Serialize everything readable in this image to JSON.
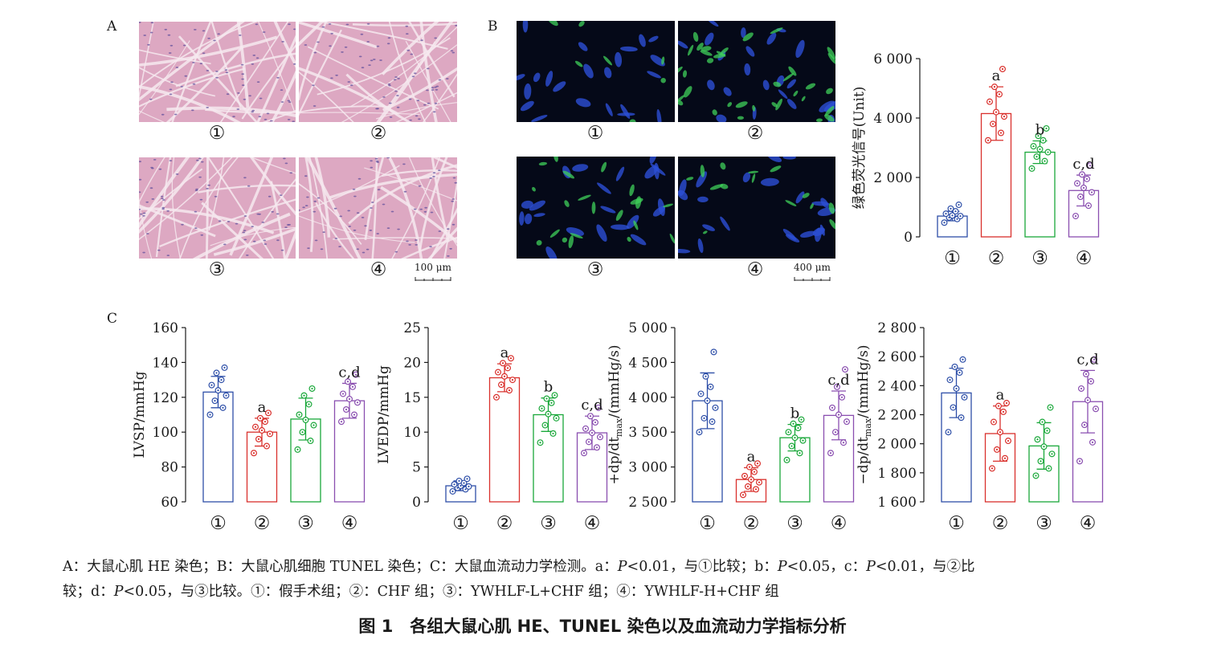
{
  "panel_labels": {
    "A": "A",
    "B": "B",
    "C": "C"
  },
  "group_marks": [
    "①",
    "②",
    "③",
    "④"
  ],
  "scale_bars": {
    "he": "100 μm",
    "tunel": "400 μm"
  },
  "colors": {
    "g1": "#2e4fa8",
    "g2": "#d9302c",
    "g3": "#1aa83a",
    "g4": "#8a4fb0"
  },
  "chart_data": [
    {
      "id": "tunel",
      "type": "bar",
      "ylabel": "绿色荧光信号(Unit)",
      "ylim": [
        0,
        6000
      ],
      "yticks": [
        0,
        2000,
        4000,
        6000
      ],
      "ytick_labels": [
        "0",
        "2 000",
        "4 000",
        "6 000"
      ],
      "categories": [
        "①",
        "②",
        "③",
        "④"
      ],
      "values": [
        700,
        4150,
        2850,
        1560
      ],
      "errors": [
        160,
        900,
        380,
        520
      ],
      "letters": [
        "",
        "a",
        "b",
        "c,d"
      ],
      "points": [
        [
          480,
          600,
          650,
          700,
          720,
          780,
          860,
          950,
          1080
        ],
        [
          3250,
          3500,
          3800,
          4050,
          4200,
          4550,
          4800,
          5050,
          5650
        ],
        [
          2300,
          2550,
          2700,
          2850,
          2950,
          3050,
          3250,
          3400,
          3650
        ],
        [
          700,
          1050,
          1350,
          1500,
          1650,
          1800,
          1950,
          2100,
          2400
        ]
      ]
    },
    {
      "id": "lvsp",
      "type": "bar",
      "ylabel": "LVSP/mmHg",
      "ylim": [
        60,
        160
      ],
      "yticks": [
        60,
        80,
        100,
        120,
        140,
        160
      ],
      "ytick_labels": [
        "60",
        "80",
        "100",
        "120",
        "140",
        "160"
      ],
      "categories": [
        "①",
        "②",
        "③",
        "④"
      ],
      "values": [
        123,
        100,
        107.5,
        118
      ],
      "errors": [
        9,
        8,
        12,
        10
      ],
      "letters": [
        "",
        "a",
        "",
        "c,d"
      ],
      "points": [
        [
          110,
          114,
          118,
          121,
          124,
          127,
          130,
          134,
          137
        ],
        [
          88,
          92,
          96,
          99,
          101,
          103,
          106,
          108,
          111
        ],
        [
          90,
          95,
          100,
          104,
          107,
          110,
          116,
          121,
          125
        ],
        [
          106,
          110,
          113,
          117,
          119,
          122,
          126,
          129,
          133
        ]
      ]
    },
    {
      "id": "lvedp",
      "type": "bar",
      "ylabel": "LVEDP/mmHg",
      "ylim": [
        0,
        25
      ],
      "yticks": [
        0,
        5,
        10,
        15,
        20,
        25
      ],
      "ytick_labels": [
        "0",
        "5",
        "10",
        "15",
        "20",
        "25"
      ],
      "categories": [
        "①",
        "②",
        "③",
        "④"
      ],
      "values": [
        2.3,
        17.8,
        12.5,
        9.9
      ],
      "errors": [
        0.7,
        2.0,
        2.4,
        2.4
      ],
      "letters": [
        "",
        "a",
        "b",
        "c,d"
      ],
      "points": [
        [
          1.5,
          1.8,
          2.0,
          2.2,
          2.3,
          2.5,
          2.7,
          3.0,
          3.3
        ],
        [
          15.0,
          16.0,
          16.8,
          17.5,
          18.0,
          18.6,
          19.2,
          19.9,
          20.6
        ],
        [
          8.5,
          9.8,
          11.0,
          12.0,
          12.6,
          13.4,
          14.2,
          14.8,
          15.3
        ],
        [
          7.0,
          7.8,
          8.6,
          9.3,
          9.9,
          10.5,
          11.4,
          12.3,
          13.5
        ]
      ]
    },
    {
      "id": "dpdt_max",
      "type": "bar",
      "ylabel": "+dp/dt",
      "ylabel_sub": "max",
      "ylabel_tail": "/(mmHg/s)",
      "ylim": [
        2500,
        5000
      ],
      "yticks": [
        2500,
        3000,
        3500,
        4000,
        4500,
        5000
      ],
      "ytick_labels": [
        "2 500",
        "3 000",
        "3 500",
        "4 000",
        "4 500",
        "5 000"
      ],
      "categories": [
        "①",
        "②",
        "③",
        "④"
      ],
      "values": [
        3950,
        2820,
        3420,
        3740
      ],
      "errors": [
        400,
        170,
        190,
        350
      ],
      "letters": [
        "",
        "a",
        "b",
        "c,d"
      ],
      "points": [
        [
          3500,
          3650,
          3700,
          3850,
          3950,
          4050,
          4150,
          4300,
          4650
        ],
        [
          2600,
          2680,
          2720,
          2780,
          2820,
          2870,
          2930,
          3000,
          3050
        ],
        [
          3100,
          3200,
          3300,
          3380,
          3420,
          3500,
          3560,
          3620,
          3680
        ],
        [
          3200,
          3350,
          3500,
          3650,
          3750,
          3850,
          4000,
          4150,
          4400
        ]
      ]
    },
    {
      "id": "dpdt_min",
      "type": "bar",
      "ylabel": "−dp/dt",
      "ylabel_sub": "max",
      "ylabel_tail": "/(mmHg/s)",
      "ylim": [
        1600,
        2800
      ],
      "yticks": [
        1600,
        1800,
        2000,
        2200,
        2400,
        2600,
        2800
      ],
      "ytick_labels": [
        "1 600",
        "1 800",
        "2 000",
        "2 200",
        "2 400",
        "2 600",
        "2 800"
      ],
      "categories": [
        "①",
        "②",
        "③",
        "④"
      ],
      "values": [
        2350,
        2070,
        1985,
        2290
      ],
      "errors": [
        170,
        190,
        160,
        215
      ],
      "letters": [
        "",
        "a",
        "",
        "c,d"
      ],
      "points": [
        [
          2080,
          2180,
          2250,
          2320,
          2380,
          2440,
          2490,
          2530,
          2580
        ],
        [
          1830,
          1900,
          1960,
          2020,
          2080,
          2150,
          2220,
          2260,
          2280
        ],
        [
          1780,
          1830,
          1880,
          1930,
          1980,
          2030,
          2090,
          2150,
          2250
        ],
        [
          1880,
          2010,
          2130,
          2240,
          2300,
          2380,
          2430,
          2480,
          2580
        ]
      ]
    }
  ],
  "caption": {
    "line1_a": "A：大鼠心肌 HE 染色；B：大鼠心肌细胞 TUNEL 染色；C：大鼠血流动力学检测。a：",
    "p": "P",
    "line1_b": "<0.01，与①比较；b：",
    "line1_c": "<0.05，c：",
    "line1_d": "<0.01，与②比",
    "line2_a": "较；d：",
    "line2_b": "<0.05，与③比较。①：假手术组；②：CHF 组；③：YWHLF-L+CHF 组；④：YWHLF-H+CHF 组"
  },
  "figure_title": "图 1　各组大鼠心肌 HE、TUNEL 染色以及血流动力学指标分析"
}
